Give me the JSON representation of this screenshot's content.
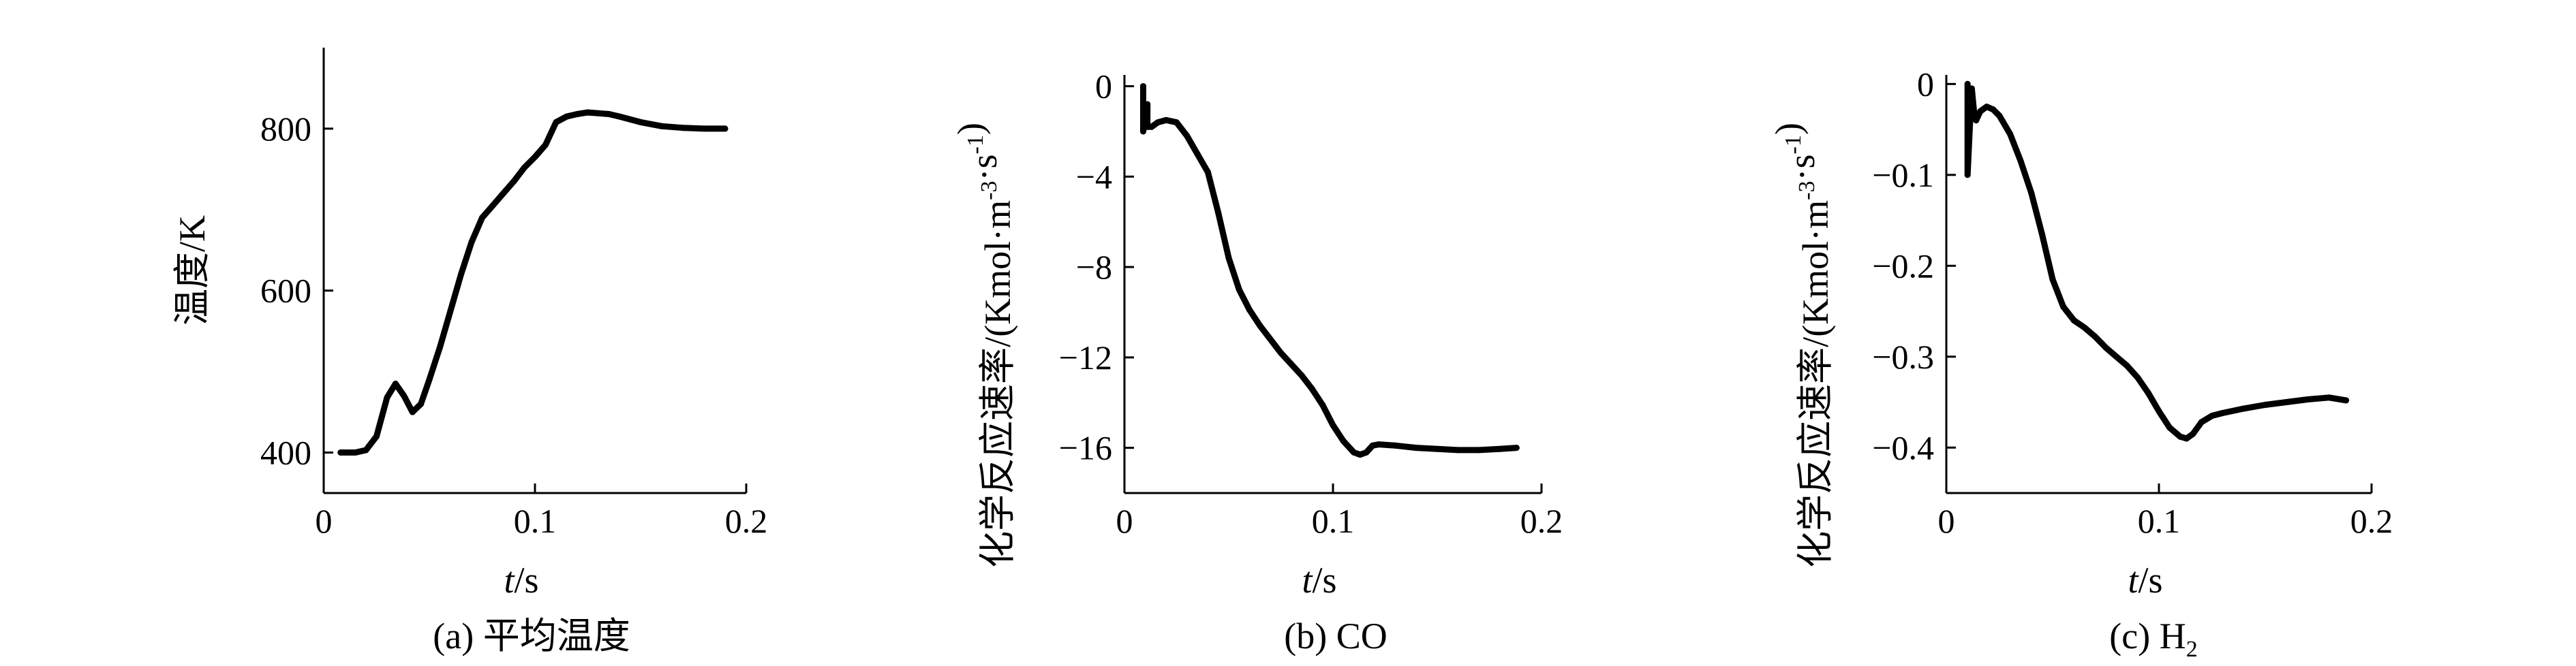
{
  "colors": {
    "line": "#000000",
    "background": "#ffffff"
  },
  "chart_data": [
    {
      "type": "line",
      "caption": "(a) 平均温度",
      "xlabel": {
        "italic": "t",
        "rest": "/s"
      },
      "ylabel": "温度/K",
      "xlim": [
        0,
        0.2
      ],
      "ylim": [
        350,
        900
      ],
      "xticks": [
        0,
        0.1,
        0.2
      ],
      "xtick_labels": [
        "0",
        "0.1",
        "0.2"
      ],
      "yticks": [
        400,
        600,
        800
      ],
      "ytick_labels": [
        "400",
        "600",
        "800"
      ],
      "series": [
        {
          "x": [
            0.008,
            0.015,
            0.02,
            0.025,
            0.03,
            0.034,
            0.038,
            0.042,
            0.046,
            0.05,
            0.055,
            0.06,
            0.065,
            0.07,
            0.075,
            0.08,
            0.085,
            0.09,
            0.095,
            0.1,
            0.105,
            0.11,
            0.115,
            0.12,
            0.125,
            0.13,
            0.135,
            0.14,
            0.15,
            0.16,
            0.17,
            0.18,
            0.19
          ],
          "y": [
            400,
            400,
            403,
            420,
            468,
            485,
            470,
            450,
            460,
            490,
            530,
            575,
            620,
            660,
            690,
            705,
            720,
            735,
            752,
            765,
            780,
            808,
            815,
            818,
            820,
            819,
            818,
            815,
            808,
            803,
            801,
            800,
            800
          ]
        }
      ]
    },
    {
      "type": "line",
      "caption": "(b) CO",
      "xlabel": {
        "italic": "t",
        "rest": "/s"
      },
      "ylabel_main": "化学反应速率/(Kmol·m",
      "ylabel_sup1": "-3",
      "ylabel_mid": "·s",
      "ylabel_sup2": "-1",
      "ylabel_end": ")",
      "xlim": [
        0,
        0.2
      ],
      "ylim": [
        -18,
        0.5
      ],
      "xticks": [
        0,
        0.1,
        0.2
      ],
      "xtick_labels": [
        "0",
        "0.1",
        "0.2"
      ],
      "yticks": [
        0,
        -4,
        -8,
        -12,
        -16
      ],
      "ytick_labels": [
        "0",
        "−4",
        "−8",
        "−12",
        "−16"
      ],
      "series": [
        {
          "x": [
            0.009,
            0.009,
            0.011,
            0.011,
            0.013,
            0.016,
            0.02,
            0.025,
            0.03,
            0.035,
            0.04,
            0.045,
            0.05,
            0.055,
            0.06,
            0.065,
            0.07,
            0.075,
            0.08,
            0.085,
            0.09,
            0.095,
            0.1,
            0.105,
            0.11,
            0.113,
            0.116,
            0.119,
            0.122,
            0.13,
            0.14,
            0.15,
            0.16,
            0.17,
            0.18,
            0.188
          ],
          "y": [
            0,
            -2.0,
            -0.8,
            -1.8,
            -1.8,
            -1.6,
            -1.5,
            -1.6,
            -2.2,
            -3.0,
            -3.8,
            -5.6,
            -7.6,
            -9.0,
            -9.9,
            -10.6,
            -11.2,
            -11.8,
            -12.3,
            -12.8,
            -13.4,
            -14.1,
            -15.0,
            -15.7,
            -16.2,
            -16.3,
            -16.2,
            -15.9,
            -15.85,
            -15.9,
            -16.0,
            -16.05,
            -16.1,
            -16.1,
            -16.05,
            -16.0
          ]
        }
      ]
    },
    {
      "type": "line",
      "caption": "(c) H",
      "caption_sub": "2",
      "xlabel": {
        "italic": "t",
        "rest": "/s"
      },
      "ylabel_main": "化学反应速率/(Kmol·m",
      "ylabel_sup1": "-3",
      "ylabel_mid": "·s",
      "ylabel_sup2": "-1",
      "ylabel_end": ")",
      "xlim": [
        0,
        0.2
      ],
      "ylim": [
        -0.45,
        0.01
      ],
      "xticks": [
        0,
        0.1,
        0.2
      ],
      "xtick_labels": [
        "0",
        "0.1",
        "0.2"
      ],
      "yticks": [
        0,
        -0.1,
        -0.2,
        -0.3,
        -0.4
      ],
      "ytick_labels": [
        "0",
        "−0.1",
        "−0.2",
        "−0.3",
        "−0.4"
      ],
      "series": [
        {
          "x": [
            0.01,
            0.01,
            0.011,
            0.012,
            0.013,
            0.014,
            0.016,
            0.019,
            0.022,
            0.025,
            0.03,
            0.035,
            0.04,
            0.045,
            0.05,
            0.055,
            0.06,
            0.065,
            0.07,
            0.075,
            0.08,
            0.085,
            0.09,
            0.095,
            0.1,
            0.105,
            0.11,
            0.113,
            0.116,
            0.12,
            0.125,
            0.13,
            0.14,
            0.15,
            0.16,
            0.17,
            0.18,
            0.188
          ],
          "y": [
            0,
            -0.1,
            -0.05,
            -0.005,
            -0.03,
            -0.04,
            -0.03,
            -0.025,
            -0.028,
            -0.035,
            -0.055,
            -0.085,
            -0.12,
            -0.165,
            -0.215,
            -0.245,
            -0.26,
            -0.268,
            -0.278,
            -0.29,
            -0.3,
            -0.31,
            -0.323,
            -0.34,
            -0.36,
            -0.378,
            -0.388,
            -0.39,
            -0.385,
            -0.372,
            -0.365,
            -0.362,
            -0.357,
            -0.353,
            -0.35,
            -0.347,
            -0.345,
            -0.348
          ]
        }
      ]
    }
  ]
}
